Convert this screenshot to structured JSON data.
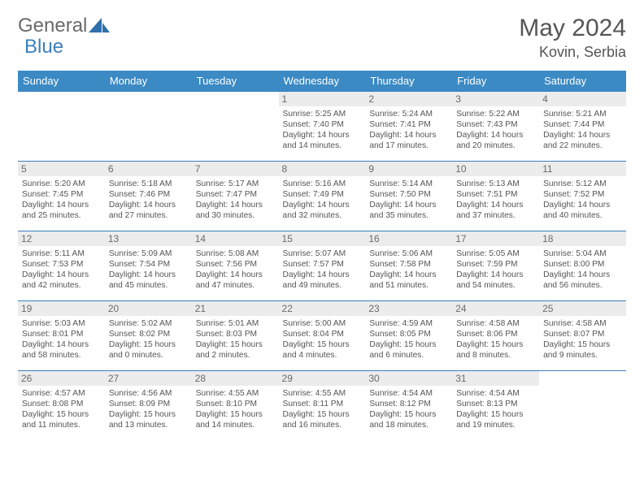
{
  "brand": {
    "word1": "General",
    "word2": "Blue"
  },
  "colors": {
    "header_bg": "#3b8ac4",
    "header_text": "#ffffff",
    "border": "#3b7fbf",
    "daynum_bg": "#ececec",
    "body_text": "#555555",
    "logo_gray": "#6a6a6a",
    "logo_blue": "#3b7fbf"
  },
  "typography": {
    "title_fontsize": 30,
    "location_fontsize": 18,
    "weekday_fontsize": 13,
    "daynum_fontsize": 12,
    "cell_fontsize": 10.2
  },
  "title": "May 2024",
  "location": "Kovin, Serbia",
  "weekdays": [
    "Sunday",
    "Monday",
    "Tuesday",
    "Wednesday",
    "Thursday",
    "Friday",
    "Saturday"
  ],
  "weeks": [
    [
      {
        "n": "",
        "sr": "",
        "ss": "",
        "dl": ""
      },
      {
        "n": "",
        "sr": "",
        "ss": "",
        "dl": ""
      },
      {
        "n": "",
        "sr": "",
        "ss": "",
        "dl": ""
      },
      {
        "n": "1",
        "sr": "5:25 AM",
        "ss": "7:40 PM",
        "dl": "14 hours and 14 minutes."
      },
      {
        "n": "2",
        "sr": "5:24 AM",
        "ss": "7:41 PM",
        "dl": "14 hours and 17 minutes."
      },
      {
        "n": "3",
        "sr": "5:22 AM",
        "ss": "7:43 PM",
        "dl": "14 hours and 20 minutes."
      },
      {
        "n": "4",
        "sr": "5:21 AM",
        "ss": "7:44 PM",
        "dl": "14 hours and 22 minutes."
      }
    ],
    [
      {
        "n": "5",
        "sr": "5:20 AM",
        "ss": "7:45 PM",
        "dl": "14 hours and 25 minutes."
      },
      {
        "n": "6",
        "sr": "5:18 AM",
        "ss": "7:46 PM",
        "dl": "14 hours and 27 minutes."
      },
      {
        "n": "7",
        "sr": "5:17 AM",
        "ss": "7:47 PM",
        "dl": "14 hours and 30 minutes."
      },
      {
        "n": "8",
        "sr": "5:16 AM",
        "ss": "7:49 PM",
        "dl": "14 hours and 32 minutes."
      },
      {
        "n": "9",
        "sr": "5:14 AM",
        "ss": "7:50 PM",
        "dl": "14 hours and 35 minutes."
      },
      {
        "n": "10",
        "sr": "5:13 AM",
        "ss": "7:51 PM",
        "dl": "14 hours and 37 minutes."
      },
      {
        "n": "11",
        "sr": "5:12 AM",
        "ss": "7:52 PM",
        "dl": "14 hours and 40 minutes."
      }
    ],
    [
      {
        "n": "12",
        "sr": "5:11 AM",
        "ss": "7:53 PM",
        "dl": "14 hours and 42 minutes."
      },
      {
        "n": "13",
        "sr": "5:09 AM",
        "ss": "7:54 PM",
        "dl": "14 hours and 45 minutes."
      },
      {
        "n": "14",
        "sr": "5:08 AM",
        "ss": "7:56 PM",
        "dl": "14 hours and 47 minutes."
      },
      {
        "n": "15",
        "sr": "5:07 AM",
        "ss": "7:57 PM",
        "dl": "14 hours and 49 minutes."
      },
      {
        "n": "16",
        "sr": "5:06 AM",
        "ss": "7:58 PM",
        "dl": "14 hours and 51 minutes."
      },
      {
        "n": "17",
        "sr": "5:05 AM",
        "ss": "7:59 PM",
        "dl": "14 hours and 54 minutes."
      },
      {
        "n": "18",
        "sr": "5:04 AM",
        "ss": "8:00 PM",
        "dl": "14 hours and 56 minutes."
      }
    ],
    [
      {
        "n": "19",
        "sr": "5:03 AM",
        "ss": "8:01 PM",
        "dl": "14 hours and 58 minutes."
      },
      {
        "n": "20",
        "sr": "5:02 AM",
        "ss": "8:02 PM",
        "dl": "15 hours and 0 minutes."
      },
      {
        "n": "21",
        "sr": "5:01 AM",
        "ss": "8:03 PM",
        "dl": "15 hours and 2 minutes."
      },
      {
        "n": "22",
        "sr": "5:00 AM",
        "ss": "8:04 PM",
        "dl": "15 hours and 4 minutes."
      },
      {
        "n": "23",
        "sr": "4:59 AM",
        "ss": "8:05 PM",
        "dl": "15 hours and 6 minutes."
      },
      {
        "n": "24",
        "sr": "4:58 AM",
        "ss": "8:06 PM",
        "dl": "15 hours and 8 minutes."
      },
      {
        "n": "25",
        "sr": "4:58 AM",
        "ss": "8:07 PM",
        "dl": "15 hours and 9 minutes."
      }
    ],
    [
      {
        "n": "26",
        "sr": "4:57 AM",
        "ss": "8:08 PM",
        "dl": "15 hours and 11 minutes."
      },
      {
        "n": "27",
        "sr": "4:56 AM",
        "ss": "8:09 PM",
        "dl": "15 hours and 13 minutes."
      },
      {
        "n": "28",
        "sr": "4:55 AM",
        "ss": "8:10 PM",
        "dl": "15 hours and 14 minutes."
      },
      {
        "n": "29",
        "sr": "4:55 AM",
        "ss": "8:11 PM",
        "dl": "15 hours and 16 minutes."
      },
      {
        "n": "30",
        "sr": "4:54 AM",
        "ss": "8:12 PM",
        "dl": "15 hours and 18 minutes."
      },
      {
        "n": "31",
        "sr": "4:54 AM",
        "ss": "8:13 PM",
        "dl": "15 hours and 19 minutes."
      },
      {
        "n": "",
        "sr": "",
        "ss": "",
        "dl": ""
      }
    ]
  ],
  "labels": {
    "sunrise": "Sunrise:",
    "sunset": "Sunset:",
    "daylight": "Daylight:"
  }
}
